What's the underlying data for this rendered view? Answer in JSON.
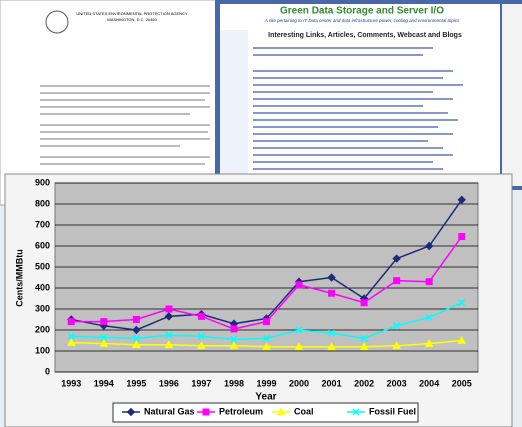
{
  "background": {
    "letter_agency": "UNITED STATES ENVIRONMENTAL PROTECTION AGENCY",
    "letter_city": "WASHINGTON, D.C. 20460",
    "site_title": "Green Data Storage and Server I/O",
    "site_subtitle": "A site pertaining to IT Data center and data infrastructure power, cooling and environmental topics",
    "site_heading": "Interesting Links, Articles, Comments, Webcast and Blogs"
  },
  "chart_data": {
    "type": "line",
    "x_label": "Year",
    "y_label": "Cents/MMBtu",
    "categories": [
      "1993",
      "1994",
      "1995",
      "1996",
      "1997",
      "1998",
      "1999",
      "2000",
      "2001",
      "2002",
      "2003",
      "2004",
      "2005"
    ],
    "series": [
      {
        "name": "Natural Gas",
        "color": "#1f2a7a",
        "marker": "diamond",
        "values": [
          250,
          220,
          200,
          265,
          275,
          230,
          255,
          430,
          450,
          350,
          540,
          600,
          820
        ]
      },
      {
        "name": "Petroleum",
        "color": "#ff00ff",
        "marker": "square",
        "values": [
          240,
          240,
          250,
          300,
          265,
          205,
          240,
          415,
          375,
          330,
          435,
          430,
          645
        ]
      },
      {
        "name": "Coal",
        "color": "#ffff00",
        "marker": "triangle",
        "values": [
          140,
          135,
          130,
          130,
          125,
          125,
          120,
          120,
          120,
          120,
          125,
          135,
          150
        ]
      },
      {
        "name": "Fossil Fuel",
        "color": "#00ffff",
        "marker": "x",
        "values": [
          170,
          165,
          160,
          175,
          170,
          155,
          160,
          200,
          185,
          160,
          220,
          260,
          330
        ]
      }
    ],
    "ylim": [
      0,
      900
    ],
    "yticks": [
      0,
      100,
      200,
      300,
      400,
      500,
      600,
      700,
      800,
      900
    ],
    "grid": true,
    "legend": "bottom"
  }
}
